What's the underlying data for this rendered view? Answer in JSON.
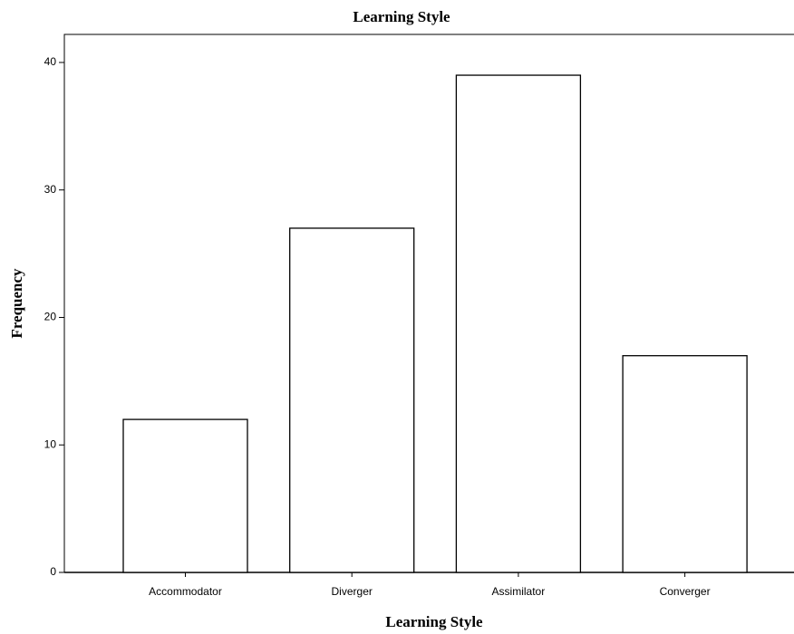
{
  "chart_data": {
    "type": "bar",
    "title": "Learning Style",
    "x_label": "Learning Style",
    "y_label": "Frequency",
    "categories": [
      "Accommodator",
      "Diverger",
      "Assimilator",
      "Converger"
    ],
    "values": [
      12,
      27,
      39,
      17
    ],
    "color": "#ffffff",
    "ylim": [
      0,
      42.2
    ],
    "yticks": [
      0,
      10,
      20,
      30,
      40
    ],
    "grid": false
  }
}
